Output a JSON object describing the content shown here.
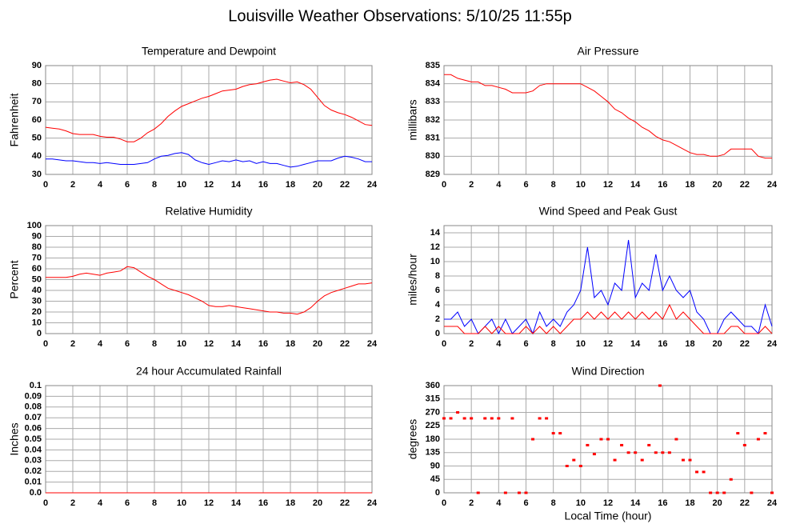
{
  "title": "Louisville Weather Observations: 5/10/25 11:55p",
  "chart_data": [
    {
      "type": "line",
      "title": "Temperature and Dewpoint",
      "ylabel": "Fahrenheit",
      "x": [
        0,
        0.5,
        1,
        1.5,
        2,
        2.5,
        3,
        3.5,
        4,
        4.5,
        5,
        5.5,
        6,
        6.5,
        7,
        7.5,
        8,
        8.5,
        9,
        9.5,
        10,
        10.5,
        11,
        11.5,
        12,
        12.5,
        13,
        13.5,
        14,
        14.5,
        15,
        15.5,
        16,
        16.5,
        17,
        17.5,
        18,
        18.5,
        19,
        19.5,
        20,
        20.5,
        21,
        21.5,
        22,
        22.5,
        23,
        23.5,
        24
      ],
      "series": [
        {
          "color": "#ff0000",
          "values": [
            56,
            55.5,
            55,
            54,
            52.5,
            52,
            52,
            52,
            51,
            50.5,
            50.5,
            49.5,
            48,
            48,
            50,
            53,
            55,
            58,
            62,
            65,
            67.5,
            69,
            70.5,
            72,
            73,
            74.5,
            76,
            76.5,
            77,
            78.5,
            79.5,
            80,
            81,
            82,
            82.5,
            81.5,
            80.5,
            81,
            79.5,
            77,
            72.5,
            68,
            65.5,
            64,
            63,
            61.5,
            59.5,
            57.5,
            57
          ]
        },
        {
          "color": "#0000ff",
          "values": [
            38.5,
            38.5,
            38,
            37.5,
            37.5,
            37,
            36.5,
            36.5,
            36,
            36.5,
            36,
            35.5,
            35.5,
            35.5,
            36,
            36.5,
            38.5,
            40,
            40.5,
            41.5,
            42,
            41,
            38,
            36.5,
            35.5,
            36.5,
            37.5,
            37,
            38,
            37,
            37.5,
            36,
            37,
            36,
            36,
            35,
            34,
            34.5,
            35.5,
            36.5,
            37.5,
            37.5,
            37.5,
            39,
            40,
            39.5,
            38.5,
            37,
            37
          ]
        }
      ],
      "xlim": [
        0,
        24
      ],
      "xticks": [
        0,
        2,
        4,
        6,
        8,
        10,
        12,
        14,
        16,
        18,
        20,
        22,
        24
      ],
      "ylim": [
        30,
        90
      ],
      "yticks": [
        30,
        40,
        50,
        60,
        70,
        80,
        90
      ],
      "grid": true
    },
    {
      "type": "line",
      "title": "Air Pressure",
      "ylabel": "millibars",
      "x": [
        0,
        0.5,
        1,
        1.5,
        2,
        2.5,
        3,
        3.5,
        4,
        4.5,
        5,
        5.5,
        6,
        6.5,
        7,
        7.5,
        8,
        8.5,
        9,
        9.5,
        10,
        10.5,
        11,
        11.5,
        12,
        12.5,
        13,
        13.5,
        14,
        14.5,
        15,
        15.5,
        16,
        16.5,
        17,
        17.5,
        18,
        18.5,
        19,
        19.5,
        20,
        20.5,
        21,
        21.5,
        22,
        22.5,
        23,
        23.5,
        24
      ],
      "series": [
        {
          "color": "#ff0000",
          "values": [
            834.5,
            834.5,
            834.3,
            834.2,
            834.1,
            834.1,
            833.9,
            833.9,
            833.8,
            833.7,
            833.5,
            833.5,
            833.5,
            833.6,
            833.9,
            834.0,
            834.0,
            834.0,
            834.0,
            834.0,
            834.0,
            833.8,
            833.6,
            833.3,
            833.0,
            832.6,
            832.4,
            832.1,
            831.9,
            831.6,
            831.4,
            831.1,
            830.9,
            830.8,
            830.6,
            830.4,
            830.2,
            830.1,
            830.1,
            830.0,
            830.0,
            830.1,
            830.4,
            830.4,
            830.4,
            830.4,
            830.0,
            829.9,
            829.9
          ]
        }
      ],
      "xlim": [
        0,
        24
      ],
      "xticks": [
        0,
        2,
        4,
        6,
        8,
        10,
        12,
        14,
        16,
        18,
        20,
        22,
        24
      ],
      "ylim": [
        829,
        835
      ],
      "yticks": [
        829,
        830,
        831,
        832,
        833,
        834,
        835
      ],
      "grid": true
    },
    {
      "type": "line",
      "title": "Relative Humidity",
      "ylabel": "Percent",
      "x": [
        0,
        0.5,
        1,
        1.5,
        2,
        2.5,
        3,
        3.5,
        4,
        4.5,
        5,
        5.5,
        6,
        6.5,
        7,
        7.5,
        8,
        8.5,
        9,
        9.5,
        10,
        10.5,
        11,
        11.5,
        12,
        12.5,
        13,
        13.5,
        14,
        14.5,
        15,
        15.5,
        16,
        16.5,
        17,
        17.5,
        18,
        18.5,
        19,
        19.5,
        20,
        20.5,
        21,
        21.5,
        22,
        22.5,
        23,
        23.5,
        24
      ],
      "series": [
        {
          "color": "#ff0000",
          "values": [
            52,
            52,
            52,
            52,
            53,
            55,
            56,
            55,
            54,
            56,
            57,
            58,
            62,
            61,
            57,
            53,
            50,
            46,
            42,
            40,
            38,
            36,
            33,
            30,
            26,
            25,
            25,
            26,
            25,
            24,
            23,
            22,
            21,
            20,
            20,
            19,
            19,
            18,
            20,
            24,
            30,
            35,
            38,
            40,
            42,
            44,
            46,
            46,
            47
          ]
        }
      ],
      "xlim": [
        0,
        24
      ],
      "xticks": [
        0,
        2,
        4,
        6,
        8,
        10,
        12,
        14,
        16,
        18,
        20,
        22,
        24
      ],
      "ylim": [
        0,
        100
      ],
      "yticks": [
        0,
        10,
        20,
        30,
        40,
        50,
        60,
        70,
        80,
        90,
        100
      ],
      "grid": true
    },
    {
      "type": "line",
      "title": "Wind Speed and Peak Gust",
      "ylabel": "miles/hour",
      "x": [
        0,
        0.5,
        1,
        1.5,
        2,
        2.5,
        3,
        3.5,
        4,
        4.5,
        5,
        5.5,
        6,
        6.5,
        7,
        7.5,
        8,
        8.5,
        9,
        9.5,
        10,
        10.5,
        11,
        11.5,
        12,
        12.5,
        13,
        13.5,
        14,
        14.5,
        15,
        15.5,
        16,
        16.5,
        17,
        17.5,
        18,
        18.5,
        19,
        19.5,
        20,
        20.5,
        21,
        21.5,
        22,
        22.5,
        23,
        23.5,
        24
      ],
      "series": [
        {
          "color": "#0000ff",
          "values": [
            2,
            2,
            3,
            1,
            2,
            0,
            1,
            2,
            0,
            2,
            0,
            1,
            2,
            0,
            3,
            1,
            2,
            1,
            3,
            4,
            6,
            12,
            5,
            6,
            4,
            7,
            6,
            13,
            5,
            7,
            6,
            11,
            6,
            8,
            6,
            5,
            6,
            3,
            2,
            0,
            0,
            2,
            3,
            2,
            1,
            1,
            0,
            4,
            1
          ]
        },
        {
          "color": "#ff0000",
          "values": [
            1,
            1,
            1,
            0,
            0,
            0,
            1,
            0,
            1,
            0,
            0,
            0,
            1,
            0,
            1,
            0,
            1,
            0,
            1,
            2,
            2,
            3,
            2,
            3,
            2,
            3,
            2,
            3,
            2,
            3,
            2,
            3,
            2,
            4,
            2,
            3,
            2,
            1,
            0,
            0,
            0,
            0,
            1,
            1,
            0,
            0,
            0,
            1,
            0
          ]
        }
      ],
      "xlim": [
        0,
        24
      ],
      "xticks": [
        0,
        2,
        4,
        6,
        8,
        10,
        12,
        14,
        16,
        18,
        20,
        22,
        24
      ],
      "ylim": [
        0,
        15
      ],
      "yticks": [
        0,
        2,
        4,
        6,
        8,
        10,
        12,
        14
      ],
      "grid": true
    },
    {
      "type": "line",
      "title": "24 hour Accumulated Rainfall",
      "ylabel": "Inches",
      "x": [
        0,
        24
      ],
      "series": [
        {
          "color": "#ff0000",
          "values": [
            0,
            0
          ]
        }
      ],
      "xlim": [
        0,
        24
      ],
      "xticks": [
        0,
        2,
        4,
        6,
        8,
        10,
        12,
        14,
        16,
        18,
        20,
        22,
        24
      ],
      "ylim": [
        0,
        0.1
      ],
      "yticks": [
        {
          "value": 0,
          "label": "0.0"
        },
        0.01,
        0.02,
        0.03,
        0.04,
        0.05,
        0.06,
        0.07,
        0.08,
        0.09,
        0.1
      ],
      "grid": true
    },
    {
      "type": "scatter",
      "title": "Wind Direction",
      "ylabel": "degrees",
      "xlabel": "Local Time (hour)",
      "x": [
        0,
        0.5,
        1,
        1.5,
        2,
        2.5,
        3,
        3.5,
        4,
        4.5,
        5,
        5.5,
        6,
        6.5,
        7,
        7.5,
        8,
        8.5,
        9,
        9.5,
        10,
        10.5,
        11,
        11.5,
        12,
        12.5,
        13,
        13.5,
        14,
        14.5,
        15,
        15.5,
        15.8,
        16,
        16.5,
        17,
        17.5,
        18,
        18.5,
        19,
        19.5,
        20,
        20.5,
        21,
        21.5,
        22,
        22.5,
        23,
        23.5,
        24
      ],
      "series": [
        {
          "color": "#ff0000",
          "values": [
            250,
            250,
            270,
            250,
            250,
            0,
            250,
            250,
            250,
            0,
            250,
            0,
            0,
            180,
            250,
            250,
            200,
            200,
            90,
            110,
            90,
            160,
            130,
            180,
            180,
            110,
            160,
            135,
            135,
            110,
            160,
            135,
            360,
            135,
            135,
            180,
            110,
            110,
            70,
            70,
            0,
            0,
            0,
            45,
            200,
            160,
            0,
            180,
            200,
            0
          ]
        }
      ],
      "xlim": [
        0,
        24
      ],
      "xticks": [
        0,
        2,
        4,
        6,
        8,
        10,
        12,
        14,
        16,
        18,
        20,
        22,
        24
      ],
      "ylim": [
        0,
        360
      ],
      "yticks": [
        0,
        45,
        90,
        135,
        180,
        225,
        270,
        315,
        360
      ],
      "grid": true
    }
  ]
}
